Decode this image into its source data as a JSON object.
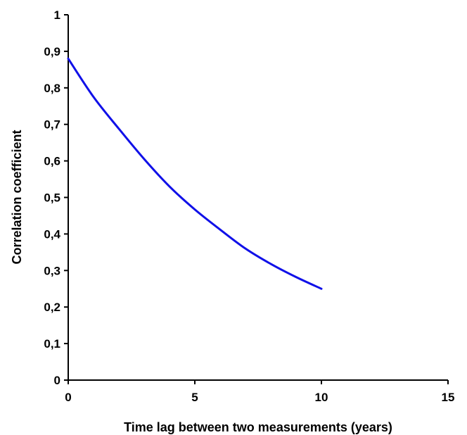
{
  "chart_data": {
    "type": "line",
    "title": "",
    "xlabel": "Time lag between two measurements (years)",
    "ylabel": "Correlation coefficient",
    "xlim": [
      0,
      15
    ],
    "ylim": [
      0,
      1
    ],
    "x_ticks": [
      0,
      5,
      10,
      15
    ],
    "x_tick_labels": [
      "0",
      "5",
      "10",
      "15"
    ],
    "y_ticks": [
      0,
      0.1,
      0.2,
      0.3,
      0.4,
      0.5,
      0.6,
      0.7,
      0.8,
      0.9,
      1
    ],
    "y_tick_labels": [
      "0",
      "0,1",
      "0,2",
      "0,3",
      "0,4",
      "0,5",
      "0,6",
      "0,7",
      "0,8",
      "0,9",
      "1"
    ],
    "grid": false,
    "legend": "none",
    "series": [
      {
        "color": "#1010e8",
        "x": [
          0,
          1,
          2,
          3,
          4,
          5,
          6,
          7,
          8,
          9,
          10
        ],
        "y": [
          0.88,
          0.775,
          0.688,
          0.605,
          0.53,
          0.467,
          0.412,
          0.36,
          0.318,
          0.282,
          0.25
        ]
      }
    ]
  }
}
